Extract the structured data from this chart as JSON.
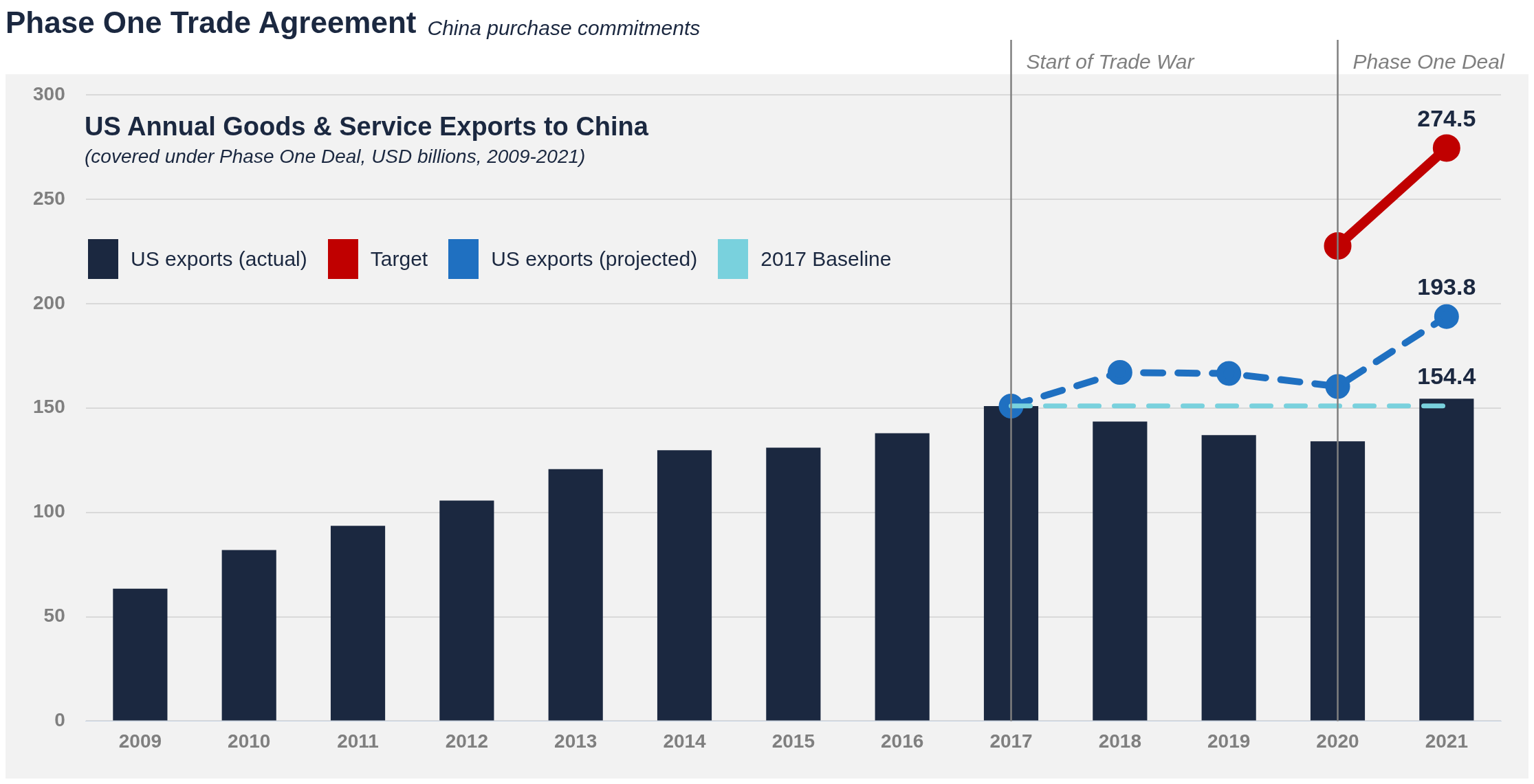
{
  "chart_data": {
    "type": "bar",
    "title": "Phase One Trade Agreement",
    "subtitle": "China purchase commitments",
    "annotations": [
      "US Annual Goods & Service Exports to China",
      "(covered under Phase One Deal, USD billions, 2009-2021)"
    ],
    "categories": [
      "2009",
      "2010",
      "2011",
      "2012",
      "2013",
      "2014",
      "2015",
      "2016",
      "2017",
      "2018",
      "2019",
      "2020",
      "2021"
    ],
    "series": [
      {
        "name": "US exports (actual)",
        "color": "#1b2840",
        "values": [
          63.4,
          81.9,
          93.5,
          105.6,
          120.7,
          129.7,
          131,
          137.9,
          150.9,
          143.5,
          137,
          134,
          154.4
        ],
        "value_labels": [
          null,
          null,
          null,
          null,
          null,
          null,
          null,
          null,
          null,
          null,
          null,
          null,
          "154.4"
        ]
      },
      {
        "name": "Target",
        "type": "line",
        "color": "#c00000",
        "marker": "circle",
        "line_style": "solid",
        "values": [
          null,
          null,
          null,
          null,
          null,
          null,
          null,
          null,
          null,
          null,
          null,
          227.6,
          274.5
        ],
        "value_labels": [
          null,
          null,
          null,
          null,
          null,
          null,
          null,
          null,
          null,
          null,
          null,
          null,
          "274.5"
        ]
      },
      {
        "name": "US exports (projected)",
        "type": "line",
        "color": "#1f70c1",
        "marker": "circle",
        "line_style": "dashed",
        "values": [
          null,
          null,
          null,
          null,
          null,
          null,
          null,
          null,
          150.9,
          167,
          166.5,
          160.3,
          193.8
        ],
        "value_labels": [
          null,
          null,
          null,
          null,
          null,
          null,
          null,
          null,
          null,
          null,
          null,
          null,
          "193.8"
        ]
      },
      {
        "name": "2017 Baseline",
        "type": "line",
        "color": "#79d1dd",
        "marker": "none",
        "line_style": "dashed",
        "values": [
          null,
          null,
          null,
          null,
          null,
          null,
          null,
          null,
          151,
          151,
          151,
          151,
          151
        ]
      }
    ],
    "ylim": [
      0,
      300
    ],
    "yticks": [
      0,
      50,
      100,
      150,
      200,
      250,
      300
    ],
    "grid": "y",
    "legend": "top left",
    "ref_lines": [
      {
        "axis": "x",
        "value": "2017",
        "label": "Start of Trade War",
        "color": "#7f7f7f"
      },
      {
        "axis": "x",
        "value": "2020",
        "label": "Phase One Deal",
        "color": "#7f7f7f"
      }
    ]
  }
}
